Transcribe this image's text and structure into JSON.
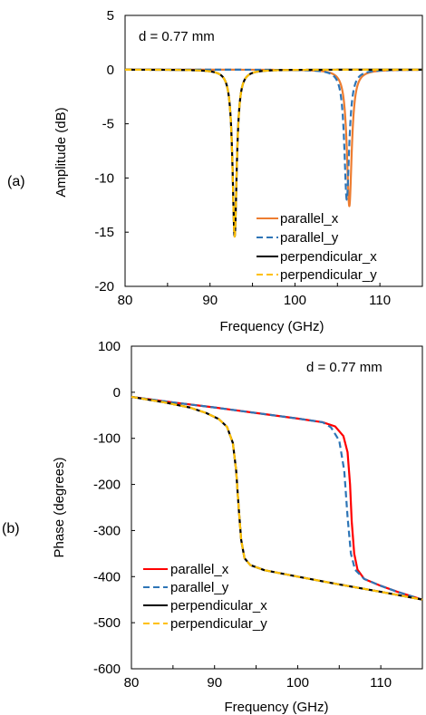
{
  "chart_data": [
    {
      "type": "line",
      "panel_label": "(a)",
      "annotation": "d = 0.77 mm",
      "xlabel": "Frequency (GHz)",
      "ylabel": "Amplitude (dB)",
      "xlim": [
        80,
        115
      ],
      "ylim": [
        -20,
        5
      ],
      "xticks": [
        80,
        90,
        100,
        110
      ],
      "yticks": [
        5,
        0,
        -5,
        -10,
        -15,
        -20
      ],
      "xtick_labels": [
        "80",
        "90",
        "100",
        "110"
      ],
      "ytick_labels": [
        "5",
        "0",
        "-5",
        "-10",
        "-15",
        "-20"
      ],
      "legend_position": "bottom-right",
      "series": [
        {
          "name": "parallel_x",
          "color": "#ED7D31",
          "dash": "solid",
          "resonance": {
            "f0": 106.4,
            "depth": -12.6,
            "width": 0.35
          }
        },
        {
          "name": "parallel_y",
          "color": "#2E75B6",
          "dash": "dashed",
          "resonance": {
            "f0": 106.1,
            "depth": -12.0,
            "width": 0.35
          }
        },
        {
          "name": "perpendicular_x",
          "color": "#000000",
          "dash": "solid",
          "resonance": {
            "f0": 92.9,
            "depth": -15.4,
            "width": 0.3
          }
        },
        {
          "name": "perpendicular_y",
          "color": "#FFC000",
          "dash": "dashed",
          "resonance": {
            "f0": 92.9,
            "depth": -15.4,
            "width": 0.3
          }
        }
      ]
    },
    {
      "type": "line",
      "panel_label": "(b)",
      "annotation": "d = 0.77 mm",
      "xlabel": "Frequency (GHz)",
      "ylabel": "Phase (degrees)",
      "xlim": [
        80,
        115
      ],
      "ylim": [
        -600,
        100
      ],
      "xticks": [
        80,
        90,
        100,
        110
      ],
      "yticks": [
        100,
        0,
        -100,
        -200,
        -300,
        -400,
        -500,
        -600
      ],
      "xtick_labels": [
        "80",
        "90",
        "100",
        "110"
      ],
      "ytick_labels": [
        "100",
        "0",
        "-100",
        "-200",
        "-300",
        "-400",
        "-500",
        "-600"
      ],
      "legend_position": "bottom-left",
      "series": [
        {
          "name": "parallel_x",
          "color": "#FF0000",
          "dash": "solid",
          "points": [
            [
              80,
              -10
            ],
            [
              85,
              -22
            ],
            [
              90,
              -33
            ],
            [
              95,
              -45
            ],
            [
              100,
              -57
            ],
            [
              103,
              -65
            ],
            [
              104.5,
              -74
            ],
            [
              105.5,
              -95
            ],
            [
              106,
              -130
            ],
            [
              106.3,
              -200
            ],
            [
              106.5,
              -280
            ],
            [
              106.8,
              -350
            ],
            [
              107.2,
              -385
            ],
            [
              108,
              -405
            ],
            [
              110,
              -420
            ],
            [
              112,
              -433
            ],
            [
              115,
              -450
            ]
          ]
        },
        {
          "name": "parallel_y",
          "color": "#2E75B6",
          "dash": "dashed",
          "points": [
            [
              80,
              -10
            ],
            [
              85,
              -22
            ],
            [
              90,
              -33
            ],
            [
              95,
              -45
            ],
            [
              100,
              -57
            ],
            [
              103,
              -65
            ],
            [
              104,
              -76
            ],
            [
              105,
              -105
            ],
            [
              105.6,
              -170
            ],
            [
              106,
              -270
            ],
            [
              106.4,
              -350
            ],
            [
              106.9,
              -385
            ],
            [
              108,
              -405
            ],
            [
              110,
              -420
            ],
            [
              112,
              -433
            ],
            [
              115,
              -450
            ]
          ]
        },
        {
          "name": "perpendicular_x",
          "color": "#000000",
          "dash": "solid",
          "points": [
            [
              80,
              -10
            ],
            [
              84,
              -22
            ],
            [
              87,
              -33
            ],
            [
              89,
              -45
            ],
            [
              90.5,
              -58
            ],
            [
              91.5,
              -75
            ],
            [
              92.2,
              -110
            ],
            [
              92.6,
              -170
            ],
            [
              92.9,
              -250
            ],
            [
              93.2,
              -320
            ],
            [
              93.6,
              -360
            ],
            [
              94.3,
              -375
            ],
            [
              96,
              -386
            ],
            [
              100,
              -400
            ],
            [
              105,
              -417
            ],
            [
              110,
              -433
            ],
            [
              115,
              -450
            ]
          ]
        },
        {
          "name": "perpendicular_y",
          "color": "#FFC000",
          "dash": "dashed",
          "points": [
            [
              80,
              -10
            ],
            [
              84,
              -22
            ],
            [
              87,
              -33
            ],
            [
              89,
              -45
            ],
            [
              90.5,
              -58
            ],
            [
              91.5,
              -75
            ],
            [
              92.2,
              -110
            ],
            [
              92.6,
              -170
            ],
            [
              92.9,
              -250
            ],
            [
              93.2,
              -320
            ],
            [
              93.6,
              -360
            ],
            [
              94.3,
              -375
            ],
            [
              96,
              -386
            ],
            [
              100,
              -400
            ],
            [
              105,
              -417
            ],
            [
              110,
              -433
            ],
            [
              115,
              -450
            ]
          ]
        }
      ]
    }
  ]
}
